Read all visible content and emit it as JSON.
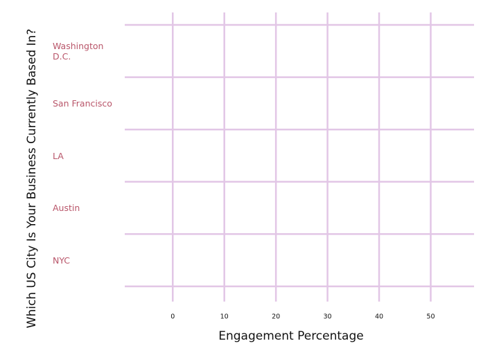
{
  "chart_data": {
    "type": "bar",
    "orientation": "horizontal",
    "x_label": "Engagement Percentage",
    "y_label": "Which US City Is Your Business Currently Based In?",
    "categories": [
      "Washington D.C.",
      "San Francisco",
      "LA",
      "Austin",
      "NYC"
    ],
    "values": [
      0,
      0,
      0,
      0,
      0
    ],
    "xlim": [
      -9.3,
      58.4
    ],
    "xticks": [
      0,
      10,
      20,
      30,
      40,
      50
    ],
    "grid": true
  }
}
